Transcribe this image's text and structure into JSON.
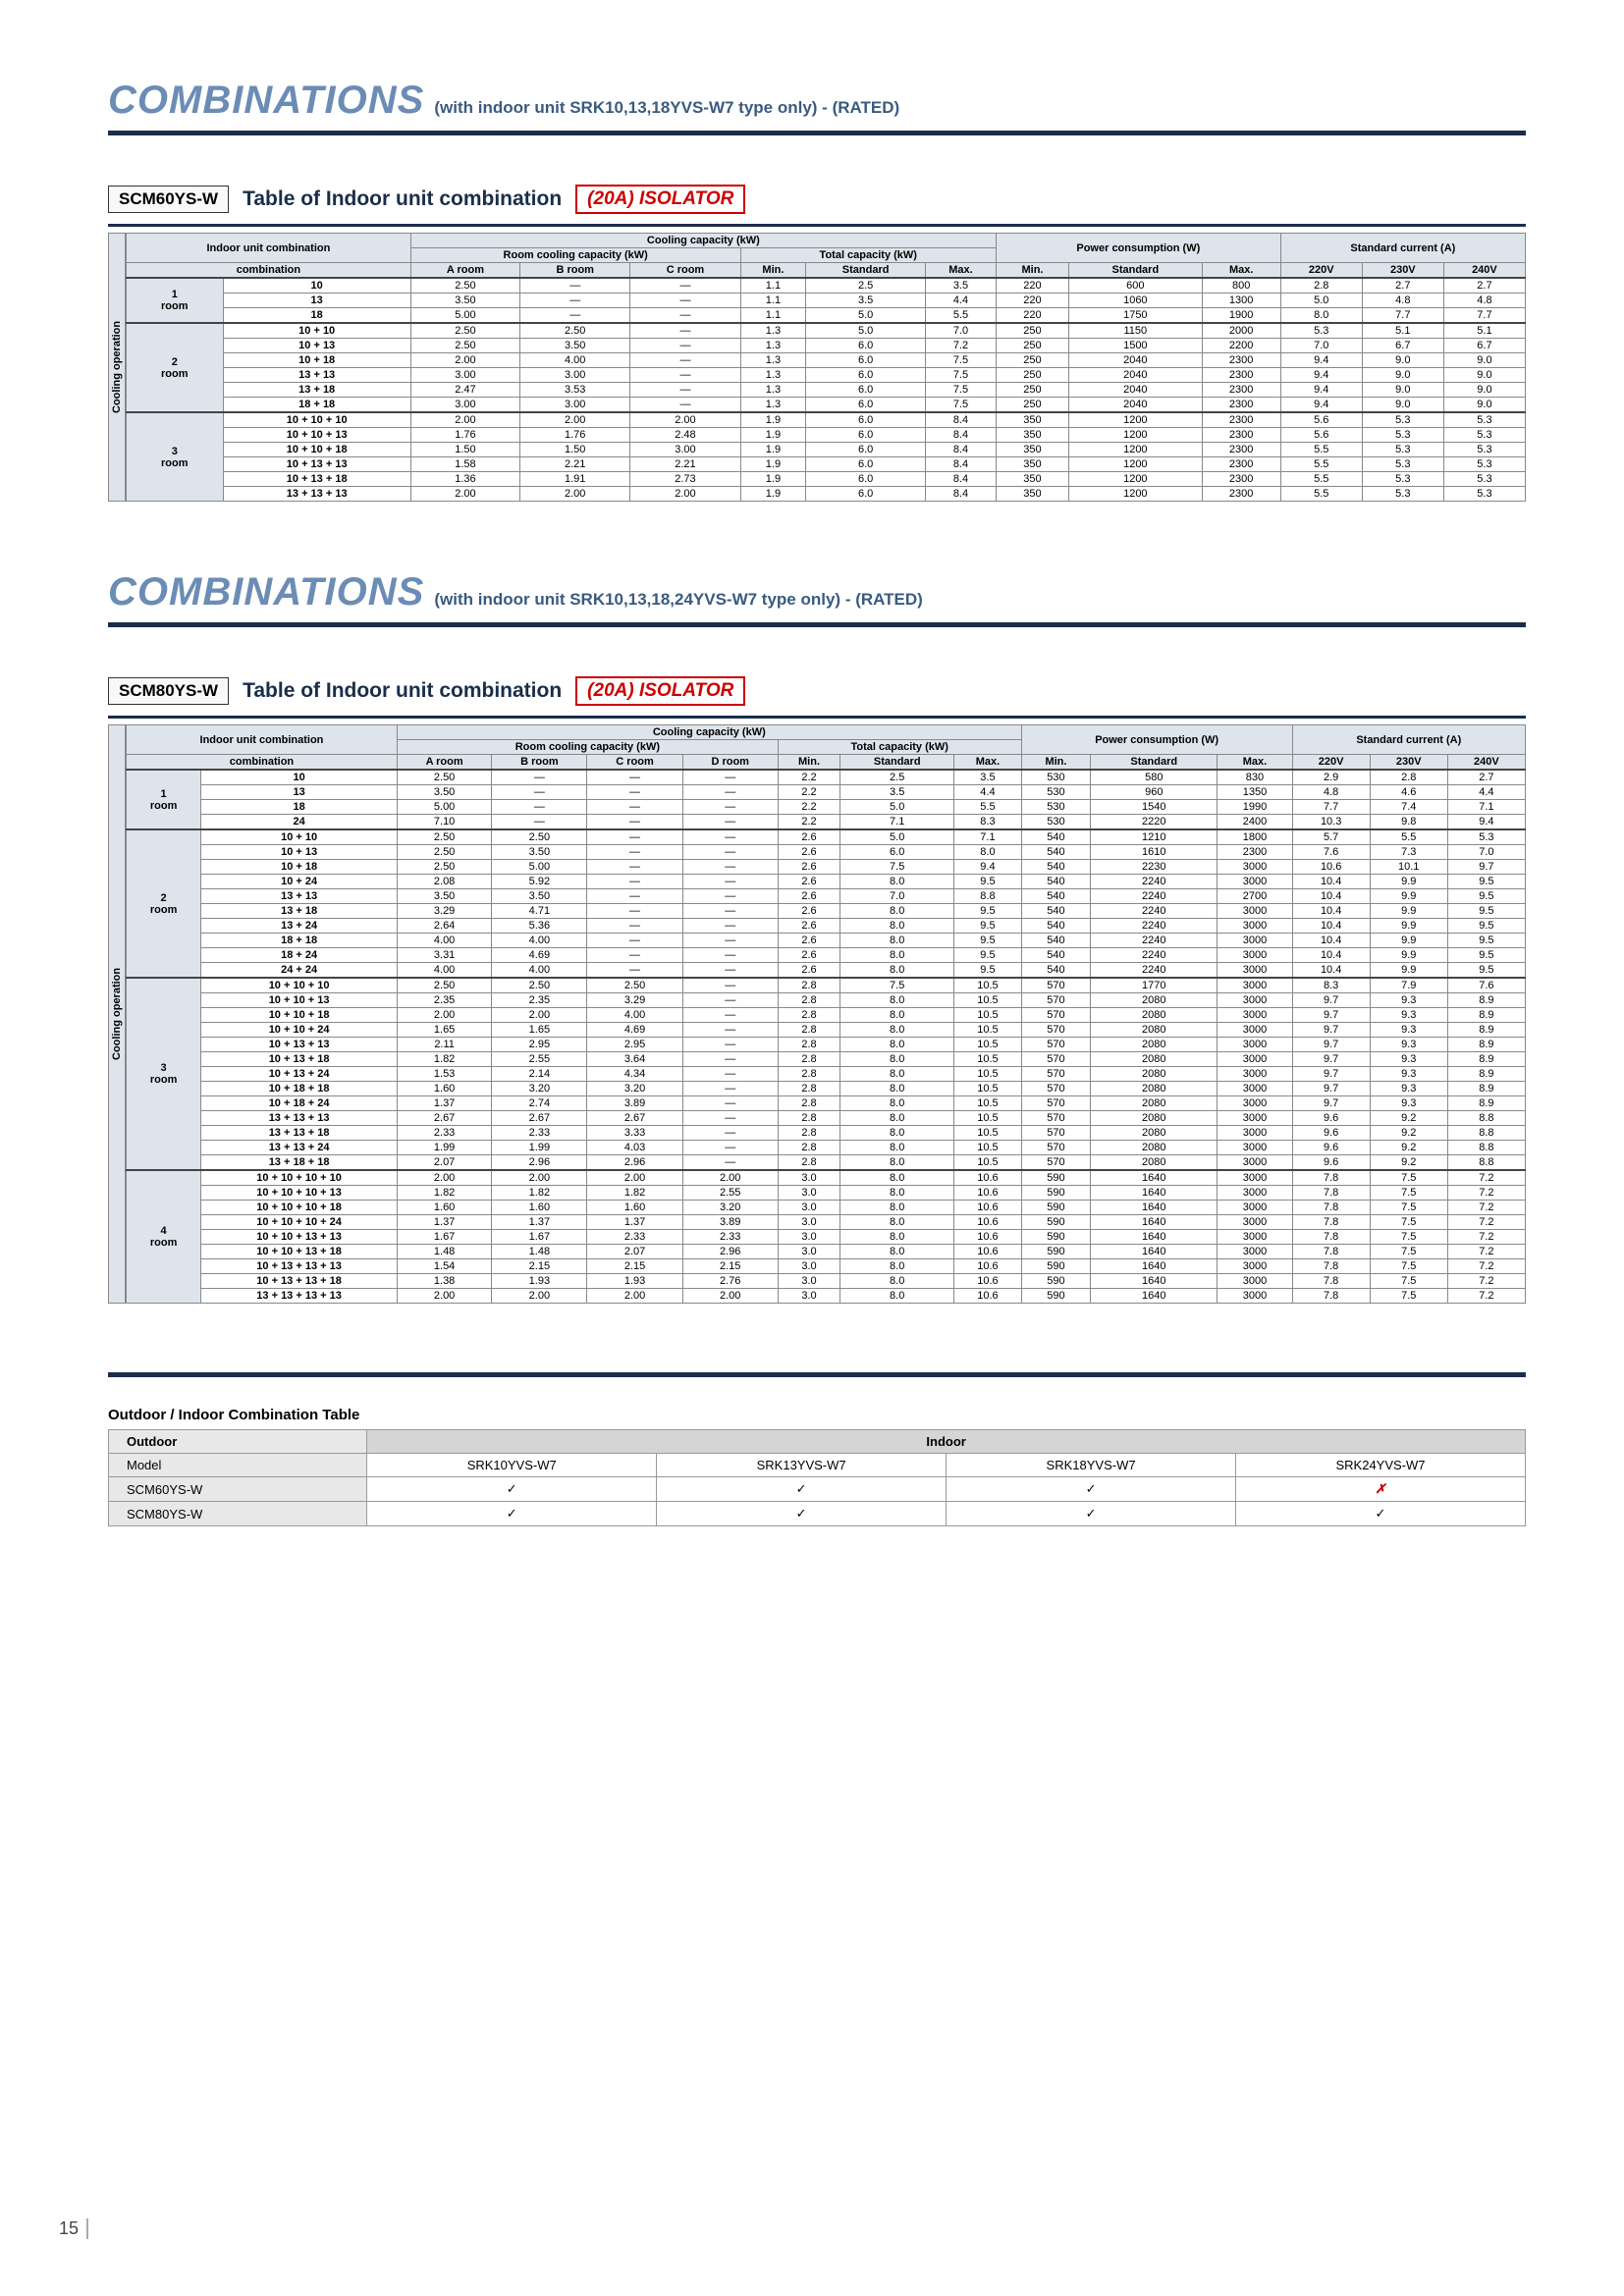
{
  "colors": {
    "accent": "#6b8cb5",
    "rule": "#1a2e4a",
    "isolator": "#cc0000",
    "th_bg": "#dde4ec"
  },
  "page_number": "15",
  "sec1": {
    "title": "COMBINATIONS",
    "sub": "(with indoor unit SRK10,13,18YVS-W7 type only) - (RATED)",
    "model": "SCM60YS-W",
    "label": "Table of Indoor unit combination",
    "isolator": "(20A) ISOLATOR",
    "vlabel": "Cooling operation",
    "h": {
      "iuc": "Indoor unit combination",
      "cc": "Cooling capacity (kW)",
      "rcc": "Room cooling capacity (kW)",
      "tc": "Total capacity (kW)",
      "pc": "Power consumption (W)",
      "sc": "Standard current (A)",
      "a": "A room",
      "b": "B room",
      "c": "C room",
      "min": "Min.",
      "std": "Standard",
      "max": "Max.",
      "v220": "220V",
      "v230": "230V",
      "v240": "240V"
    },
    "groups": [
      {
        "rooms": "1 room",
        "rows": [
          [
            "10",
            "2.50",
            "—",
            "—",
            "1.1",
            "2.5",
            "3.5",
            "220",
            "600",
            "800",
            "2.8",
            "2.7",
            "2.7"
          ],
          [
            "13",
            "3.50",
            "—",
            "—",
            "1.1",
            "3.5",
            "4.4",
            "220",
            "1060",
            "1300",
            "5.0",
            "4.8",
            "4.8"
          ],
          [
            "18",
            "5.00",
            "—",
            "—",
            "1.1",
            "5.0",
            "5.5",
            "220",
            "1750",
            "1900",
            "8.0",
            "7.7",
            "7.7"
          ]
        ]
      },
      {
        "rooms": "2 room",
        "rows": [
          [
            "10 + 10",
            "2.50",
            "2.50",
            "—",
            "1.3",
            "5.0",
            "7.0",
            "250",
            "1150",
            "2000",
            "5.3",
            "5.1",
            "5.1"
          ],
          [
            "10 + 13",
            "2.50",
            "3.50",
            "—",
            "1.3",
            "6.0",
            "7.2",
            "250",
            "1500",
            "2200",
            "7.0",
            "6.7",
            "6.7"
          ],
          [
            "10 + 18",
            "2.00",
            "4.00",
            "—",
            "1.3",
            "6.0",
            "7.5",
            "250",
            "2040",
            "2300",
            "9.4",
            "9.0",
            "9.0"
          ],
          [
            "13 + 13",
            "3.00",
            "3.00",
            "—",
            "1.3",
            "6.0",
            "7.5",
            "250",
            "2040",
            "2300",
            "9.4",
            "9.0",
            "9.0"
          ],
          [
            "13 + 18",
            "2.47",
            "3.53",
            "—",
            "1.3",
            "6.0",
            "7.5",
            "250",
            "2040",
            "2300",
            "9.4",
            "9.0",
            "9.0"
          ],
          [
            "18 + 18",
            "3.00",
            "3.00",
            "—",
            "1.3",
            "6.0",
            "7.5",
            "250",
            "2040",
            "2300",
            "9.4",
            "9.0",
            "9.0"
          ]
        ]
      },
      {
        "rooms": "3 room",
        "rows": [
          [
            "10 + 10 + 10",
            "2.00",
            "2.00",
            "2.00",
            "1.9",
            "6.0",
            "8.4",
            "350",
            "1200",
            "2300",
            "5.6",
            "5.3",
            "5.3"
          ],
          [
            "10 + 10 + 13",
            "1.76",
            "1.76",
            "2.48",
            "1.9",
            "6.0",
            "8.4",
            "350",
            "1200",
            "2300",
            "5.6",
            "5.3",
            "5.3"
          ],
          [
            "10 + 10 + 18",
            "1.50",
            "1.50",
            "3.00",
            "1.9",
            "6.0",
            "8.4",
            "350",
            "1200",
            "2300",
            "5.5",
            "5.3",
            "5.3"
          ],
          [
            "10 + 13 + 13",
            "1.58",
            "2.21",
            "2.21",
            "1.9",
            "6.0",
            "8.4",
            "350",
            "1200",
            "2300",
            "5.5",
            "5.3",
            "5.3"
          ],
          [
            "10 + 13 + 18",
            "1.36",
            "1.91",
            "2.73",
            "1.9",
            "6.0",
            "8.4",
            "350",
            "1200",
            "2300",
            "5.5",
            "5.3",
            "5.3"
          ],
          [
            "13 + 13 + 13",
            "2.00",
            "2.00",
            "2.00",
            "1.9",
            "6.0",
            "8.4",
            "350",
            "1200",
            "2300",
            "5.5",
            "5.3",
            "5.3"
          ]
        ]
      }
    ]
  },
  "sec2": {
    "title": "COMBINATIONS",
    "sub": "(with indoor unit SRK10,13,18,24YVS-W7 type only) - (RATED)",
    "model": "SCM80YS-W",
    "label": "Table of Indoor unit combination",
    "isolator": "(20A) ISOLATOR",
    "vlabel": "Cooling operation",
    "h": {
      "iuc": "Indoor unit combination",
      "cc": "Cooling capacity (kW)",
      "rcc": "Room cooling capacity (kW)",
      "tc": "Total capacity (kW)",
      "pc": "Power consumption (W)",
      "sc": "Standard current (A)",
      "a": "A room",
      "b": "B room",
      "c": "C room",
      "d": "D room",
      "min": "Min.",
      "std": "Standard",
      "max": "Max.",
      "v220": "220V",
      "v230": "230V",
      "v240": "240V"
    },
    "groups": [
      {
        "rooms": "1 room",
        "rows": [
          [
            "10",
            "2.50",
            "—",
            "—",
            "—",
            "2.2",
            "2.5",
            "3.5",
            "530",
            "580",
            "830",
            "2.9",
            "2.8",
            "2.7"
          ],
          [
            "13",
            "3.50",
            "—",
            "—",
            "—",
            "2.2",
            "3.5",
            "4.4",
            "530",
            "960",
            "1350",
            "4.8",
            "4.6",
            "4.4"
          ],
          [
            "18",
            "5.00",
            "—",
            "—",
            "—",
            "2.2",
            "5.0",
            "5.5",
            "530",
            "1540",
            "1990",
            "7.7",
            "7.4",
            "7.1"
          ],
          [
            "24",
            "7.10",
            "—",
            "—",
            "—",
            "2.2",
            "7.1",
            "8.3",
            "530",
            "2220",
            "2400",
            "10.3",
            "9.8",
            "9.4"
          ]
        ]
      },
      {
        "rooms": "2 room",
        "rows": [
          [
            "10 + 10",
            "2.50",
            "2.50",
            "—",
            "—",
            "2.6",
            "5.0",
            "7.1",
            "540",
            "1210",
            "1800",
            "5.7",
            "5.5",
            "5.3"
          ],
          [
            "10 + 13",
            "2.50",
            "3.50",
            "—",
            "—",
            "2.6",
            "6.0",
            "8.0",
            "540",
            "1610",
            "2300",
            "7.6",
            "7.3",
            "7.0"
          ],
          [
            "10 + 18",
            "2.50",
            "5.00",
            "—",
            "—",
            "2.6",
            "7.5",
            "9.4",
            "540",
            "2230",
            "3000",
            "10.6",
            "10.1",
            "9.7"
          ],
          [
            "10 + 24",
            "2.08",
            "5.92",
            "—",
            "—",
            "2.6",
            "8.0",
            "9.5",
            "540",
            "2240",
            "3000",
            "10.4",
            "9.9",
            "9.5"
          ],
          [
            "13 + 13",
            "3.50",
            "3.50",
            "—",
            "—",
            "2.6",
            "7.0",
            "8.8",
            "540",
            "2240",
            "2700",
            "10.4",
            "9.9",
            "9.5"
          ],
          [
            "13 + 18",
            "3.29",
            "4.71",
            "—",
            "—",
            "2.6",
            "8.0",
            "9.5",
            "540",
            "2240",
            "3000",
            "10.4",
            "9.9",
            "9.5"
          ],
          [
            "13 + 24",
            "2.64",
            "5.36",
            "—",
            "—",
            "2.6",
            "8.0",
            "9.5",
            "540",
            "2240",
            "3000",
            "10.4",
            "9.9",
            "9.5"
          ],
          [
            "18 + 18",
            "4.00",
            "4.00",
            "—",
            "—",
            "2.6",
            "8.0",
            "9.5",
            "540",
            "2240",
            "3000",
            "10.4",
            "9.9",
            "9.5"
          ],
          [
            "18 + 24",
            "3.31",
            "4.69",
            "—",
            "—",
            "2.6",
            "8.0",
            "9.5",
            "540",
            "2240",
            "3000",
            "10.4",
            "9.9",
            "9.5"
          ],
          [
            "24 + 24",
            "4.00",
            "4.00",
            "—",
            "—",
            "2.6",
            "8.0",
            "9.5",
            "540",
            "2240",
            "3000",
            "10.4",
            "9.9",
            "9.5"
          ]
        ]
      },
      {
        "rooms": "3 room",
        "rows": [
          [
            "10 + 10 + 10",
            "2.50",
            "2.50",
            "2.50",
            "—",
            "2.8",
            "7.5",
            "10.5",
            "570",
            "1770",
            "3000",
            "8.3",
            "7.9",
            "7.6"
          ],
          [
            "10 + 10 + 13",
            "2.35",
            "2.35",
            "3.29",
            "—",
            "2.8",
            "8.0",
            "10.5",
            "570",
            "2080",
            "3000",
            "9.7",
            "9.3",
            "8.9"
          ],
          [
            "10 + 10 + 18",
            "2.00",
            "2.00",
            "4.00",
            "—",
            "2.8",
            "8.0",
            "10.5",
            "570",
            "2080",
            "3000",
            "9.7",
            "9.3",
            "8.9"
          ],
          [
            "10 + 10 + 24",
            "1.65",
            "1.65",
            "4.69",
            "—",
            "2.8",
            "8.0",
            "10.5",
            "570",
            "2080",
            "3000",
            "9.7",
            "9.3",
            "8.9"
          ],
          [
            "10 + 13 + 13",
            "2.11",
            "2.95",
            "2.95",
            "—",
            "2.8",
            "8.0",
            "10.5",
            "570",
            "2080",
            "3000",
            "9.7",
            "9.3",
            "8.9"
          ],
          [
            "10 + 13 + 18",
            "1.82",
            "2.55",
            "3.64",
            "—",
            "2.8",
            "8.0",
            "10.5",
            "570",
            "2080",
            "3000",
            "9.7",
            "9.3",
            "8.9"
          ],
          [
            "10 + 13 + 24",
            "1.53",
            "2.14",
            "4.34",
            "—",
            "2.8",
            "8.0",
            "10.5",
            "570",
            "2080",
            "3000",
            "9.7",
            "9.3",
            "8.9"
          ],
          [
            "10 + 18 + 18",
            "1.60",
            "3.20",
            "3.20",
            "—",
            "2.8",
            "8.0",
            "10.5",
            "570",
            "2080",
            "3000",
            "9.7",
            "9.3",
            "8.9"
          ],
          [
            "10 + 18 + 24",
            "1.37",
            "2.74",
            "3.89",
            "—",
            "2.8",
            "8.0",
            "10.5",
            "570",
            "2080",
            "3000",
            "9.7",
            "9.3",
            "8.9"
          ],
          [
            "13 + 13 + 13",
            "2.67",
            "2.67",
            "2.67",
            "—",
            "2.8",
            "8.0",
            "10.5",
            "570",
            "2080",
            "3000",
            "9.6",
            "9.2",
            "8.8"
          ],
          [
            "13 + 13 + 18",
            "2.33",
            "2.33",
            "3.33",
            "—",
            "2.8",
            "8.0",
            "10.5",
            "570",
            "2080",
            "3000",
            "9.6",
            "9.2",
            "8.8"
          ],
          [
            "13 + 13 + 24",
            "1.99",
            "1.99",
            "4.03",
            "—",
            "2.8",
            "8.0",
            "10.5",
            "570",
            "2080",
            "3000",
            "9.6",
            "9.2",
            "8.8"
          ],
          [
            "13 + 18 + 18",
            "2.07",
            "2.96",
            "2.96",
            "—",
            "2.8",
            "8.0",
            "10.5",
            "570",
            "2080",
            "3000",
            "9.6",
            "9.2",
            "8.8"
          ]
        ]
      },
      {
        "rooms": "4 room",
        "rows": [
          [
            "10 + 10 + 10 + 10",
            "2.00",
            "2.00",
            "2.00",
            "2.00",
            "3.0",
            "8.0",
            "10.6",
            "590",
            "1640",
            "3000",
            "7.8",
            "7.5",
            "7.2"
          ],
          [
            "10 + 10 + 10 + 13",
            "1.82",
            "1.82",
            "1.82",
            "2.55",
            "3.0",
            "8.0",
            "10.6",
            "590",
            "1640",
            "3000",
            "7.8",
            "7.5",
            "7.2"
          ],
          [
            "10 + 10 + 10 + 18",
            "1.60",
            "1.60",
            "1.60",
            "3.20",
            "3.0",
            "8.0",
            "10.6",
            "590",
            "1640",
            "3000",
            "7.8",
            "7.5",
            "7.2"
          ],
          [
            "10 + 10 + 10 + 24",
            "1.37",
            "1.37",
            "1.37",
            "3.89",
            "3.0",
            "8.0",
            "10.6",
            "590",
            "1640",
            "3000",
            "7.8",
            "7.5",
            "7.2"
          ],
          [
            "10 + 10 + 13 + 13",
            "1.67",
            "1.67",
            "2.33",
            "2.33",
            "3.0",
            "8.0",
            "10.6",
            "590",
            "1640",
            "3000",
            "7.8",
            "7.5",
            "7.2"
          ],
          [
            "10 + 10 + 13 + 18",
            "1.48",
            "1.48",
            "2.07",
            "2.96",
            "3.0",
            "8.0",
            "10.6",
            "590",
            "1640",
            "3000",
            "7.8",
            "7.5",
            "7.2"
          ],
          [
            "10 + 13 + 13 + 13",
            "1.54",
            "2.15",
            "2.15",
            "2.15",
            "3.0",
            "8.0",
            "10.6",
            "590",
            "1640",
            "3000",
            "7.8",
            "7.5",
            "7.2"
          ],
          [
            "10 + 13 + 13 + 18",
            "1.38",
            "1.93",
            "1.93",
            "2.76",
            "3.0",
            "8.0",
            "10.6",
            "590",
            "1640",
            "3000",
            "7.8",
            "7.5",
            "7.2"
          ],
          [
            "13 + 13 + 13 + 13",
            "2.00",
            "2.00",
            "2.00",
            "2.00",
            "3.0",
            "8.0",
            "10.6",
            "590",
            "1640",
            "3000",
            "7.8",
            "7.5",
            "7.2"
          ]
        ]
      }
    ]
  },
  "compat": {
    "title": "Outdoor / Indoor Combination Table",
    "h": {
      "out": "Outdoor",
      "in": "Indoor",
      "model": "Model"
    },
    "cols": [
      "SRK10YVS-W7",
      "SRK13YVS-W7",
      "SRK18YVS-W7",
      "SRK24YVS-W7"
    ],
    "rows": [
      {
        "model": "SCM60YS-W",
        "cells": [
          "✓",
          "✓",
          "✓",
          "✗"
        ]
      },
      {
        "model": "SCM80YS-W",
        "cells": [
          "✓",
          "✓",
          "✓",
          "✓"
        ]
      }
    ]
  }
}
